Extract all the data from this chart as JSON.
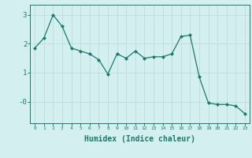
{
  "x": [
    0,
    1,
    2,
    3,
    4,
    5,
    6,
    7,
    8,
    9,
    10,
    11,
    12,
    13,
    14,
    15,
    16,
    17,
    18,
    19,
    20,
    21,
    22,
    23
  ],
  "y": [
    1.85,
    2.2,
    3.0,
    2.6,
    1.85,
    1.75,
    1.65,
    1.45,
    0.95,
    1.65,
    1.5,
    1.75,
    1.5,
    1.55,
    1.55,
    1.65,
    2.25,
    2.3,
    0.85,
    -0.05,
    -0.1,
    -0.1,
    -0.15,
    -0.42
  ],
  "line_color": "#1a7a6e",
  "marker": "D",
  "marker_size": 2.0,
  "bg_color": "#d4efef",
  "grid_color": "#c0dede",
  "xlabel": "Humidex (Indice chaleur)",
  "xlabel_fontsize": 7,
  "ylim": [
    -0.75,
    3.35
  ],
  "xlim": [
    -0.5,
    23.5
  ],
  "xticks": [
    0,
    1,
    2,
    3,
    4,
    5,
    6,
    7,
    8,
    9,
    10,
    11,
    12,
    13,
    14,
    15,
    16,
    17,
    18,
    19,
    20,
    21,
    22,
    23
  ],
  "yticks": [
    0,
    1,
    2,
    3
  ],
  "ytick_labels": [
    "-0",
    "1",
    "2",
    "3"
  ]
}
